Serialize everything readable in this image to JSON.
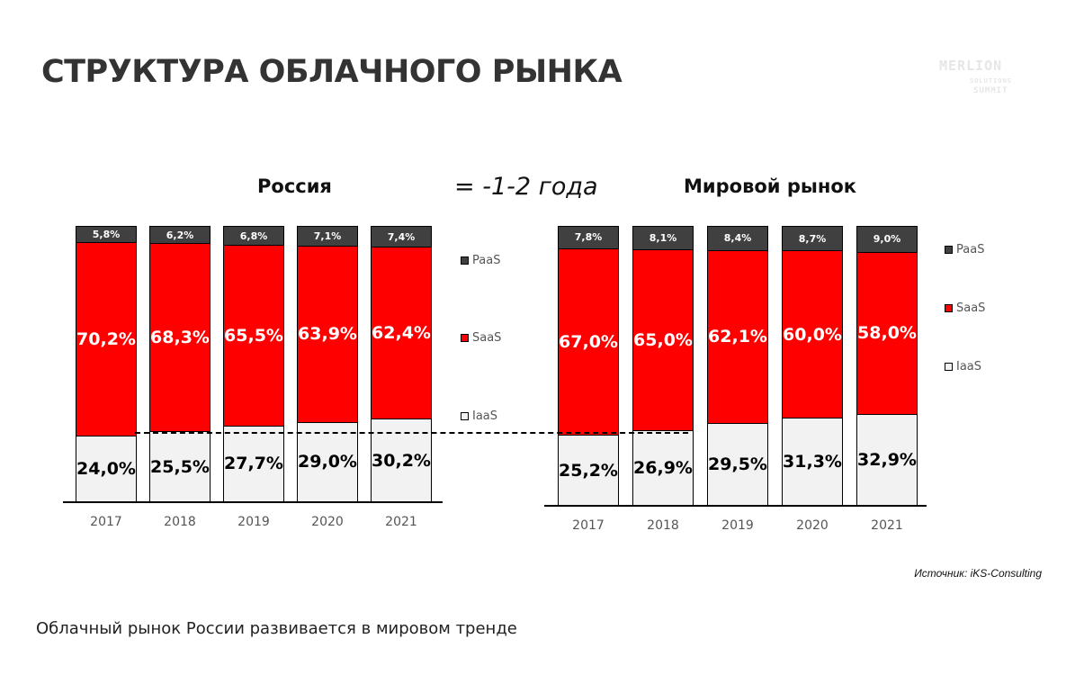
{
  "title": "СТРУКТУРА ОБЛАЧНОГО РЫНКА",
  "logo": {
    "line1": "MERLION",
    "line2": "SOLUTIONS",
    "line3": "SUMMIT"
  },
  "middle_label": "= -1-2 года",
  "source": "Источник: iKS-Consulting",
  "footer": "Облачный рынок России развивается в мировом тренде",
  "colors": {
    "IaaS": "#f2f2f2",
    "SaaS": "#ff0000",
    "PaaS": "#404040"
  },
  "chart_data": [
    {
      "type": "bar",
      "stacked": true,
      "title": "Россия",
      "categories": [
        "2017",
        "2018",
        "2019",
        "2020",
        "2021"
      ],
      "series": [
        {
          "name": "IaaS",
          "values": [
            24.0,
            25.5,
            27.7,
            29.0,
            30.2
          ],
          "labels": [
            "24,0%",
            "25,5%",
            "27,7%",
            "29,0%",
            "30,2%"
          ]
        },
        {
          "name": "SaaS",
          "values": [
            70.2,
            68.3,
            65.5,
            63.9,
            62.4
          ],
          "labels": [
            "70,2%",
            "68,3%",
            "65,5%",
            "63,9%",
            "62,4%"
          ]
        },
        {
          "name": "PaaS",
          "values": [
            5.8,
            6.2,
            6.8,
            7.1,
            7.4
          ],
          "labels": [
            "5,8%",
            "6,2%",
            "6,8%",
            "7,1%",
            "7,4%"
          ]
        }
      ],
      "legend": [
        "PaaS",
        "SaaS",
        "IaaS"
      ],
      "legend_position": "right",
      "ylim": [
        0,
        100
      ]
    },
    {
      "type": "bar",
      "stacked": true,
      "title": "Мировой рынок",
      "categories": [
        "2017",
        "2018",
        "2019",
        "2020",
        "2021"
      ],
      "series": [
        {
          "name": "IaaS",
          "values": [
            25.2,
            26.9,
            29.5,
            31.3,
            32.9
          ],
          "labels": [
            "25,2%",
            "26,9%",
            "29,5%",
            "31,3%",
            "32,9%"
          ]
        },
        {
          "name": "SaaS",
          "values": [
            67.0,
            65.0,
            62.1,
            60.0,
            58.0
          ],
          "labels": [
            "67,0%",
            "65,0%",
            "62,1%",
            "60,0%",
            "58,0%"
          ]
        },
        {
          "name": "PaaS",
          "values": [
            7.8,
            8.1,
            8.4,
            8.7,
            9.0
          ],
          "labels": [
            "7,8%",
            "8,1%",
            "8,4%",
            "8,7%",
            "9,0%"
          ]
        }
      ],
      "legend": [
        "PaaS",
        "SaaS",
        "IaaS"
      ],
      "legend_position": "right",
      "ylim": [
        0,
        100
      ]
    }
  ]
}
